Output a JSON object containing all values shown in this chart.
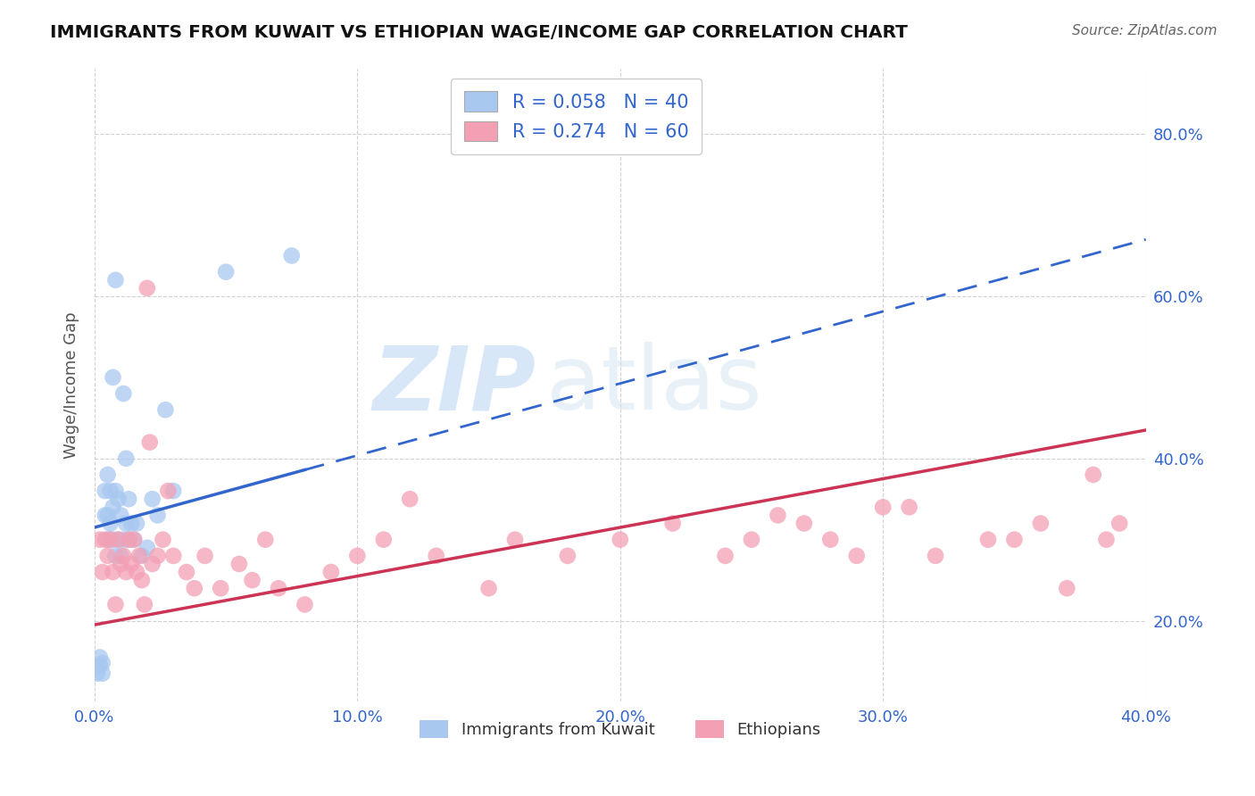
{
  "title": "IMMIGRANTS FROM KUWAIT VS ETHIOPIAN WAGE/INCOME GAP CORRELATION CHART",
  "source": "Source: ZipAtlas.com",
  "ylabel": "Wage/Income Gap",
  "xlim": [
    0.0,
    0.4
  ],
  "ylim": [
    0.1,
    0.88
  ],
  "x_ticks": [
    0.0,
    0.1,
    0.2,
    0.3,
    0.4
  ],
  "x_tick_labels": [
    "0.0%",
    "10.0%",
    "20.0%",
    "30.0%",
    "40.0%"
  ],
  "y_ticks": [
    0.2,
    0.4,
    0.6,
    0.8
  ],
  "y_tick_labels": [
    "20.0%",
    "40.0%",
    "60.0%",
    "80.0%"
  ],
  "blue_R": 0.058,
  "blue_N": 40,
  "pink_R": 0.274,
  "pink_N": 60,
  "blue_color": "#a8c8f0",
  "pink_color": "#f4a0b4",
  "blue_line_color": "#3366cc",
  "pink_line_color": "#cc3355",
  "watermark_zip": "ZIP",
  "watermark_atlas": "atlas",
  "background_color": "#ffffff",
  "blue_x": [
    0.001,
    0.002,
    0.002,
    0.003,
    0.003,
    0.004,
    0.004,
    0.005,
    0.005,
    0.005,
    0.006,
    0.006,
    0.006,
    0.007,
    0.007,
    0.007,
    0.008,
    0.008,
    0.008,
    0.009,
    0.009,
    0.01,
    0.01,
    0.011,
    0.011,
    0.012,
    0.012,
    0.013,
    0.013,
    0.014,
    0.015,
    0.016,
    0.018,
    0.02,
    0.022,
    0.024,
    0.027,
    0.03,
    0.05,
    0.075
  ],
  "blue_y": [
    0.135,
    0.155,
    0.145,
    0.135,
    0.148,
    0.33,
    0.36,
    0.3,
    0.33,
    0.38,
    0.3,
    0.32,
    0.36,
    0.3,
    0.34,
    0.5,
    0.28,
    0.36,
    0.62,
    0.3,
    0.35,
    0.28,
    0.33,
    0.3,
    0.48,
    0.32,
    0.4,
    0.3,
    0.35,
    0.32,
    0.3,
    0.32,
    0.28,
    0.29,
    0.35,
    0.33,
    0.46,
    0.36,
    0.63,
    0.65
  ],
  "pink_x": [
    0.002,
    0.003,
    0.004,
    0.005,
    0.006,
    0.007,
    0.008,
    0.009,
    0.01,
    0.011,
    0.012,
    0.013,
    0.014,
    0.015,
    0.016,
    0.017,
    0.018,
    0.019,
    0.02,
    0.021,
    0.022,
    0.024,
    0.026,
    0.028,
    0.03,
    0.035,
    0.038,
    0.042,
    0.048,
    0.055,
    0.06,
    0.065,
    0.07,
    0.08,
    0.09,
    0.1,
    0.11,
    0.12,
    0.13,
    0.15,
    0.16,
    0.18,
    0.2,
    0.22,
    0.24,
    0.26,
    0.28,
    0.3,
    0.32,
    0.34,
    0.35,
    0.36,
    0.37,
    0.38,
    0.385,
    0.39,
    0.25,
    0.27,
    0.29,
    0.31
  ],
  "pink_y": [
    0.3,
    0.26,
    0.3,
    0.28,
    0.3,
    0.26,
    0.22,
    0.3,
    0.27,
    0.28,
    0.26,
    0.3,
    0.27,
    0.3,
    0.26,
    0.28,
    0.25,
    0.22,
    0.61,
    0.42,
    0.27,
    0.28,
    0.3,
    0.36,
    0.28,
    0.26,
    0.24,
    0.28,
    0.24,
    0.27,
    0.25,
    0.3,
    0.24,
    0.22,
    0.26,
    0.28,
    0.3,
    0.35,
    0.28,
    0.24,
    0.3,
    0.28,
    0.3,
    0.32,
    0.28,
    0.33,
    0.3,
    0.34,
    0.28,
    0.3,
    0.3,
    0.32,
    0.24,
    0.38,
    0.3,
    0.32,
    0.3,
    0.32,
    0.28,
    0.34
  ]
}
